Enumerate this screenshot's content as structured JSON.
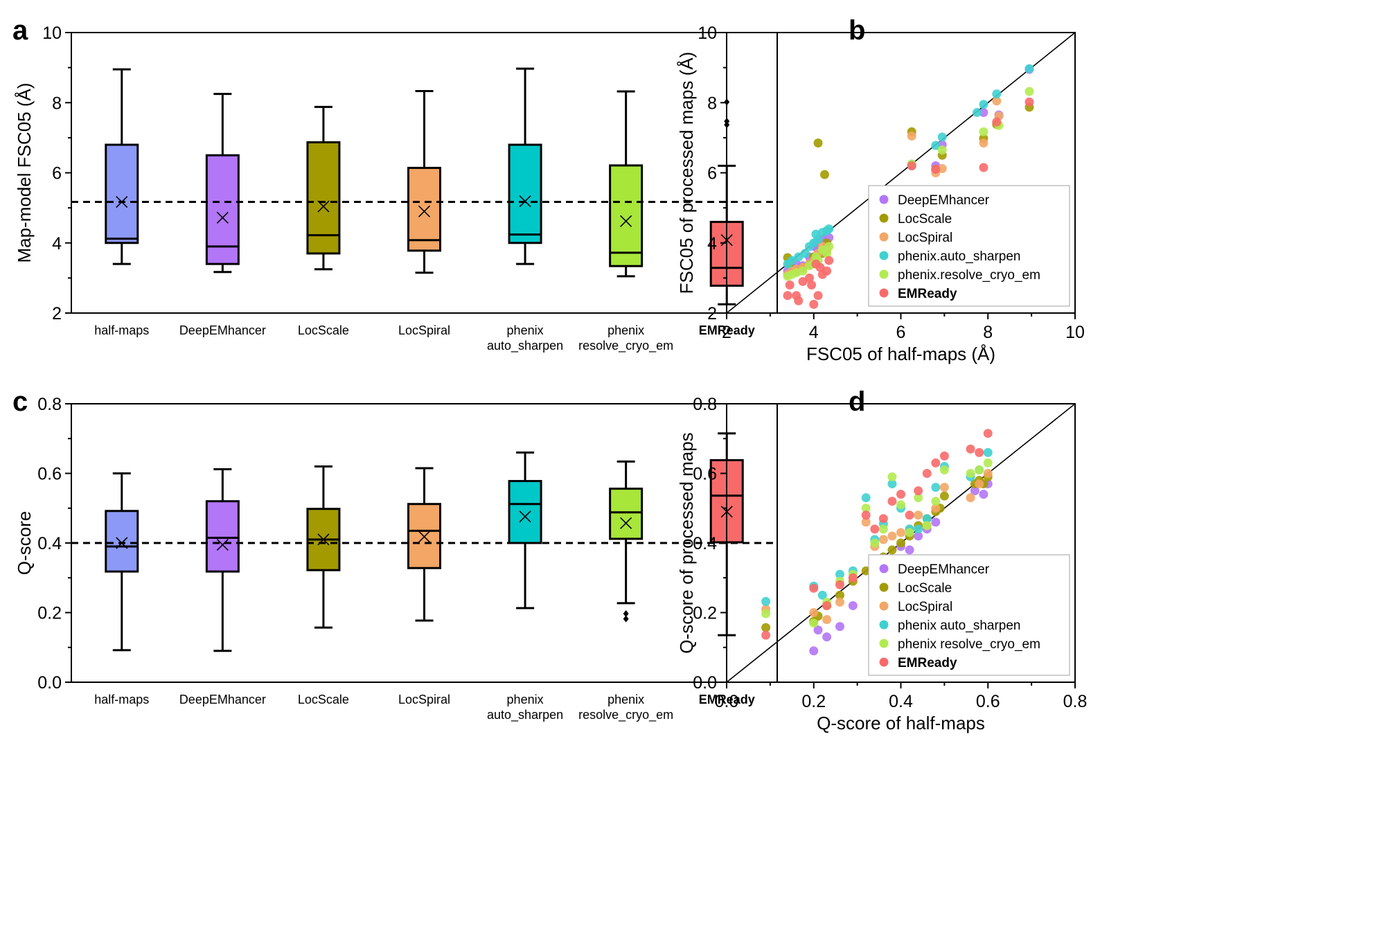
{
  "colors": {
    "half_maps": "#8c99f7",
    "DeepEMhancer": "#b276f7",
    "LocScale": "#a39a00",
    "LocSpiral": "#f3a665",
    "phenix_auto_sharpen": "#00c8c8",
    "phenix_resolve_cryo_em": "#a8e63a",
    "EMReady": "#f86a6a",
    "scatter": {
      "DeepEMhancer": "#c08ef6",
      "LocScale": "#8b7d26",
      "LocSpiral": "#f4bb8a",
      "phenix": "#40d0d0",
      "phenix_resolve": "#b2ea52",
      "EMReady": "#f25a5a"
    }
  },
  "chart_data": [
    {
      "id": "a",
      "panel_label": "a",
      "type": "box",
      "ylabel": "Map-model FSC05 (Å)",
      "ylim": [
        2,
        10
      ],
      "yticks": [
        "2",
        "4",
        "6",
        "8",
        "10"
      ],
      "reference_line": 5.17,
      "categories": [
        {
          "lines": [
            "half-maps"
          ],
          "bold": false,
          "color_key": "half_maps"
        },
        {
          "lines": [
            "DeepEMhancer"
          ],
          "bold": false,
          "color_key": "DeepEMhancer"
        },
        {
          "lines": [
            "LocScale"
          ],
          "bold": false,
          "color_key": "LocScale"
        },
        {
          "lines": [
            "LocSpiral"
          ],
          "bold": false,
          "color_key": "LocSpiral"
        },
        {
          "lines": [
            "phenix",
            "auto_sharpen"
          ],
          "bold": false,
          "color_key": "phenix_auto_sharpen"
        },
        {
          "lines": [
            "phenix",
            "resolve_cryo_em"
          ],
          "bold": false,
          "color_key": "phenix_resolve_cryo_em"
        },
        {
          "lines": [
            "EMReady"
          ],
          "bold": true,
          "color_key": "EMReady"
        }
      ],
      "boxes": [
        {
          "min": 3.4,
          "q1": 4.0,
          "median": 4.12,
          "q3": 6.8,
          "max": 8.95,
          "mean": 5.17,
          "outliers": []
        },
        {
          "min": 3.17,
          "q1": 3.4,
          "median": 3.9,
          "q3": 6.5,
          "max": 8.25,
          "mean": 4.72,
          "outliers": []
        },
        {
          "min": 3.25,
          "q1": 3.7,
          "median": 4.22,
          "q3": 6.87,
          "max": 7.88,
          "mean": 5.04,
          "outliers": []
        },
        {
          "min": 3.15,
          "q1": 3.78,
          "median": 4.08,
          "q3": 6.14,
          "max": 8.33,
          "mean": 4.9,
          "outliers": []
        },
        {
          "min": 3.4,
          "q1": 4.0,
          "median": 4.24,
          "q3": 6.8,
          "max": 8.97,
          "mean": 5.19,
          "outliers": []
        },
        {
          "min": 3.05,
          "q1": 3.34,
          "median": 3.72,
          "q3": 6.21,
          "max": 8.32,
          "mean": 4.62,
          "outliers": []
        },
        {
          "min": 2.25,
          "q1": 2.78,
          "median": 3.29,
          "q3": 4.6,
          "max": 6.2,
          "mean": 4.08,
          "outliers": [
            7.37,
            7.47,
            8.02
          ]
        }
      ]
    },
    {
      "id": "b",
      "panel_label": "b",
      "type": "scatter",
      "xlabel": "FSC05 of half-maps (Å)",
      "ylabel": "FSC05 of processed maps (Å)",
      "xlim": [
        2,
        10
      ],
      "ylim": [
        2,
        10
      ],
      "xticks": [
        "2",
        "4",
        "6",
        "8",
        "10"
      ],
      "yticks": [
        "2",
        "4",
        "6",
        "8",
        "10"
      ],
      "diagonal": true,
      "legend_position": "bottom-right",
      "series": [
        {
          "name": "DeepEMhancer",
          "bold": false,
          "color_key": "DeepEMhancer",
          "x": [
            3.4,
            3.5,
            3.6,
            3.75,
            3.9,
            4.0,
            4.05,
            4.1,
            4.2,
            4.3,
            4.35,
            6.25,
            6.8,
            6.95,
            7.9,
            8.25,
            8.95
          ],
          "y": [
            3.2,
            3.3,
            3.4,
            3.35,
            3.6,
            3.9,
            4.0,
            3.8,
            4.1,
            4.0,
            4.15,
            6.2,
            6.2,
            6.8,
            7.72,
            7.65,
            8.95
          ]
        },
        {
          "name": "LocScale",
          "bold": false,
          "color_key": "LocScale",
          "x": [
            3.4,
            3.45,
            3.6,
            3.75,
            3.9,
            4.0,
            4.1,
            4.2,
            4.25,
            4.3,
            6.25,
            6.8,
            6.95,
            7.9,
            8.2,
            8.95
          ],
          "y": [
            3.58,
            3.4,
            3.2,
            3.3,
            3.4,
            3.6,
            6.85,
            3.7,
            5.95,
            4.0,
            7.17,
            6.1,
            6.5,
            6.98,
            7.38,
            7.87
          ]
        },
        {
          "name": "LocSpiral",
          "bold": false,
          "color_key": "LocSpiral",
          "x": [
            3.4,
            3.5,
            3.6,
            3.75,
            3.9,
            4.0,
            4.1,
            4.2,
            4.3,
            6.25,
            6.8,
            6.95,
            7.9,
            8.2,
            8.25
          ],
          "y": [
            3.1,
            3.2,
            3.25,
            3.3,
            3.4,
            3.5,
            3.7,
            3.9,
            3.8,
            7.05,
            6.0,
            6.12,
            6.85,
            8.05,
            7.62
          ]
        },
        {
          "name": "phenix.auto_sharpen",
          "bold": false,
          "color_key": "phenix",
          "x": [
            3.4,
            3.5,
            3.65,
            3.8,
            3.9,
            4.0,
            4.05,
            4.1,
            4.2,
            4.3,
            4.35,
            6.25,
            6.8,
            6.95,
            7.75,
            7.9,
            8.2,
            8.95
          ],
          "y": [
            3.4,
            3.5,
            3.6,
            3.7,
            3.9,
            4.0,
            4.25,
            4.1,
            4.3,
            4.35,
            4.4,
            6.25,
            6.78,
            7.02,
            7.72,
            7.95,
            8.25,
            8.97
          ]
        },
        {
          "name": "phenix.resolve_cryo_em",
          "bold": false,
          "color_key": "phenix_resolve",
          "x": [
            3.4,
            3.5,
            3.6,
            3.75,
            3.9,
            4.0,
            4.05,
            4.1,
            4.2,
            4.3,
            4.35,
            6.25,
            6.95,
            7.9,
            8.25,
            8.95
          ],
          "y": [
            3.05,
            3.1,
            3.15,
            3.2,
            3.35,
            3.4,
            3.6,
            3.5,
            3.8,
            3.7,
            3.9,
            6.25,
            6.65,
            7.17,
            7.35,
            8.32
          ]
        },
        {
          "name": "EMReady",
          "bold": true,
          "color_key": "EMReady",
          "x": [
            3.4,
            3.45,
            3.6,
            3.65,
            3.75,
            3.9,
            3.95,
            4.0,
            4.05,
            4.1,
            4.15,
            4.2,
            4.3,
            4.35,
            6.25,
            6.8,
            7.9,
            8.2,
            8.95
          ],
          "y": [
            2.5,
            2.8,
            2.5,
            2.35,
            2.9,
            3.0,
            2.8,
            2.25,
            3.4,
            2.5,
            3.3,
            3.1,
            3.2,
            3.5,
            6.2,
            6.1,
            6.15,
            7.45,
            8.02
          ]
        }
      ]
    },
    {
      "id": "c",
      "panel_label": "c",
      "type": "box",
      "ylabel": "Q-score",
      "ylim": [
        0,
        0.8
      ],
      "yticks": [
        "0.0",
        "0.2",
        "0.4",
        "0.6",
        "0.8"
      ],
      "reference_line": 0.4,
      "categories": [
        {
          "lines": [
            "half-maps"
          ],
          "bold": false,
          "color_key": "half_maps"
        },
        {
          "lines": [
            "DeepEMhancer"
          ],
          "bold": false,
          "color_key": "DeepEMhancer"
        },
        {
          "lines": [
            "LocScale"
          ],
          "bold": false,
          "color_key": "LocScale"
        },
        {
          "lines": [
            "LocSpiral"
          ],
          "bold": false,
          "color_key": "LocSpiral"
        },
        {
          "lines": [
            "phenix",
            "auto_sharpen"
          ],
          "bold": false,
          "color_key": "phenix_auto_sharpen"
        },
        {
          "lines": [
            "phenix",
            "resolve_cryo_em"
          ],
          "bold": false,
          "color_key": "phenix_resolve_cryo_em"
        },
        {
          "lines": [
            "EMReady"
          ],
          "bold": true,
          "color_key": "EMReady"
        }
      ],
      "boxes": [
        {
          "min": 0.092,
          "q1": 0.318,
          "median": 0.39,
          "q3": 0.492,
          "max": 0.6,
          "mean": 0.4,
          "outliers": []
        },
        {
          "min": 0.09,
          "q1": 0.318,
          "median": 0.415,
          "q3": 0.52,
          "max": 0.612,
          "mean": 0.395,
          "outliers": []
        },
        {
          "min": 0.157,
          "q1": 0.322,
          "median": 0.41,
          "q3": 0.498,
          "max": 0.62,
          "mean": 0.41,
          "outliers": []
        },
        {
          "min": 0.177,
          "q1": 0.328,
          "median": 0.435,
          "q3": 0.512,
          "max": 0.615,
          "mean": 0.418,
          "outliers": []
        },
        {
          "min": 0.213,
          "q1": 0.4,
          "median": 0.512,
          "q3": 0.578,
          "max": 0.66,
          "mean": 0.476,
          "outliers": []
        },
        {
          "min": 0.227,
          "q1": 0.412,
          "median": 0.488,
          "q3": 0.556,
          "max": 0.634,
          "mean": 0.457,
          "outliers": [
            0.182,
            0.197
          ]
        },
        {
          "min": 0.135,
          "q1": 0.402,
          "median": 0.536,
          "q3": 0.638,
          "max": 0.715,
          "mean": 0.49,
          "outliers": []
        }
      ]
    },
    {
      "id": "d",
      "panel_label": "d",
      "type": "scatter",
      "xlabel": "Q-score of half-maps",
      "ylabel": "Q-score of processed maps",
      "xlim": [
        0,
        0.8
      ],
      "ylim": [
        0,
        0.8
      ],
      "xticks": [
        "0.0",
        "0.2",
        "0.4",
        "0.6",
        "0.8"
      ],
      "yticks": [
        "0.0",
        "0.2",
        "0.4",
        "0.6",
        "0.8"
      ],
      "diagonal": true,
      "legend_position": "bottom-right",
      "series": [
        {
          "name": "DeepEMhancer",
          "bold": false,
          "color_key": "DeepEMhancer",
          "x": [
            0.2,
            0.21,
            0.23,
            0.26,
            0.29,
            0.34,
            0.36,
            0.4,
            0.42,
            0.44,
            0.46,
            0.48,
            0.57,
            0.59,
            0.6
          ],
          "y": [
            0.09,
            0.15,
            0.13,
            0.16,
            0.22,
            0.31,
            0.33,
            0.39,
            0.38,
            0.42,
            0.44,
            0.46,
            0.55,
            0.54,
            0.57
          ]
        },
        {
          "name": "LocScale",
          "bold": false,
          "color_key": "LocScale",
          "x": [
            0.09,
            0.2,
            0.21,
            0.23,
            0.26,
            0.29,
            0.32,
            0.34,
            0.36,
            0.38,
            0.4,
            0.42,
            0.44,
            0.46,
            0.48,
            0.49,
            0.5,
            0.57,
            0.58,
            0.59,
            0.6
          ],
          "y": [
            0.157,
            0.175,
            0.19,
            0.22,
            0.25,
            0.29,
            0.32,
            0.33,
            0.36,
            0.38,
            0.4,
            0.42,
            0.45,
            0.47,
            0.49,
            0.5,
            0.535,
            0.57,
            0.58,
            0.57,
            0.59
          ]
        },
        {
          "name": "LocSpiral",
          "bold": false,
          "color_key": "LocSpiral",
          "x": [
            0.09,
            0.2,
            0.23,
            0.26,
            0.29,
            0.32,
            0.34,
            0.36,
            0.38,
            0.4,
            0.42,
            0.44,
            0.46,
            0.48,
            0.5,
            0.56,
            0.58,
            0.6
          ],
          "y": [
            0.21,
            0.2,
            0.18,
            0.23,
            0.3,
            0.46,
            0.39,
            0.41,
            0.42,
            0.43,
            0.44,
            0.48,
            0.45,
            0.5,
            0.56,
            0.53,
            0.57,
            0.6
          ]
        },
        {
          "name": "phenix auto_sharpen",
          "bold": false,
          "color_key": "phenix",
          "x": [
            0.09,
            0.2,
            0.22,
            0.26,
            0.29,
            0.32,
            0.34,
            0.36,
            0.38,
            0.4,
            0.42,
            0.44,
            0.46,
            0.48,
            0.5,
            0.56,
            0.58,
            0.6
          ],
          "y": [
            0.232,
            0.276,
            0.25,
            0.31,
            0.32,
            0.53,
            0.41,
            0.455,
            0.57,
            0.5,
            0.44,
            0.44,
            0.47,
            0.56,
            0.62,
            0.59,
            0.61,
            0.66
          ]
        },
        {
          "name": "phenix resolve_cryo_em",
          "bold": false,
          "color_key": "phenix_resolve",
          "x": [
            0.09,
            0.2,
            0.23,
            0.26,
            0.29,
            0.32,
            0.34,
            0.36,
            0.38,
            0.4,
            0.42,
            0.44,
            0.46,
            0.48,
            0.5,
            0.56,
            0.58,
            0.6
          ],
          "y": [
            0.197,
            0.17,
            0.23,
            0.29,
            0.31,
            0.5,
            0.4,
            0.44,
            0.59,
            0.51,
            0.43,
            0.53,
            0.45,
            0.52,
            0.61,
            0.6,
            0.61,
            0.63
          ]
        },
        {
          "name": "EMReady",
          "bold": true,
          "color_key": "EMReady",
          "x": [
            0.09,
            0.2,
            0.23,
            0.26,
            0.29,
            0.32,
            0.34,
            0.36,
            0.38,
            0.4,
            0.42,
            0.44,
            0.46,
            0.48,
            0.5,
            0.56,
            0.58,
            0.6
          ],
          "y": [
            0.135,
            0.27,
            0.22,
            0.28,
            0.3,
            0.48,
            0.44,
            0.47,
            0.52,
            0.54,
            0.48,
            0.55,
            0.6,
            0.63,
            0.65,
            0.67,
            0.66,
            0.715
          ]
        }
      ]
    }
  ]
}
